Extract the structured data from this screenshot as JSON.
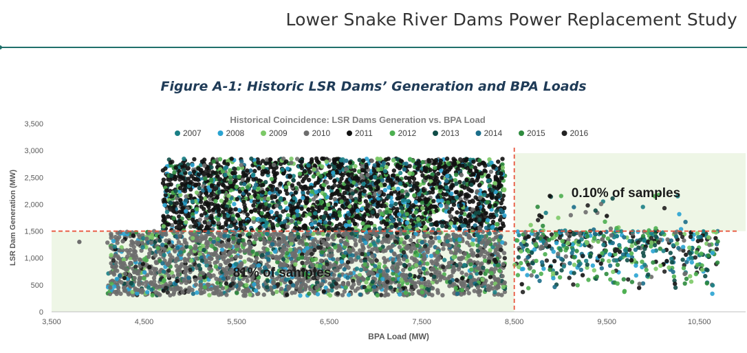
{
  "header": {
    "document_title": "Lower Snake River Dams Power Replacement Study",
    "figure_caption": "Figure A-1: Historic LSR Dams’ Generation and BPA Loads"
  },
  "chart_data": {
    "type": "scatter",
    "title": "Historical Coincidence: LSR Dams Generation vs. BPA Load",
    "xlabel": "BPA Load (MW)",
    "ylabel": "LSR Dam Generation (MW)",
    "xlim": [
      3500,
      11000
    ],
    "ylim": [
      0,
      3500
    ],
    "x_ticks": [
      3500,
      4500,
      5500,
      6500,
      7500,
      8500,
      9500,
      10500
    ],
    "x_tick_labels": [
      "3,500",
      "4,500",
      "5,500",
      "6,500",
      "7,500",
      "8,500",
      "9,500",
      "10,500"
    ],
    "y_ticks": [
      0,
      500,
      1000,
      1500,
      2000,
      2500,
      3000,
      3500
    ],
    "y_tick_labels": [
      "0",
      "500",
      "1,000",
      "1,500",
      "2,000",
      "2,500",
      "3,000",
      "3,500"
    ],
    "legend": [
      "2007",
      "2008",
      "2009",
      "2010",
      "2011",
      "2012",
      "2013",
      "2014",
      "2015",
      "2016"
    ],
    "legend_position": "top",
    "series_colors": [
      "#1a7f85",
      "#29a3d1",
      "#7cc967",
      "#6d6d6d",
      "#111111",
      "#4caf50",
      "#0f4c47",
      "#1b6e8a",
      "#2e8b3e",
      "#222222"
    ],
    "threshold_lines": {
      "x": 8500,
      "y": 1500,
      "color": "#e8543c"
    },
    "regions": [
      {
        "x_range": [
          3500,
          8500
        ],
        "y_range": [
          0,
          1500
        ],
        "label": "81% of samples",
        "fill": "#eef6e6"
      },
      {
        "x_range": [
          8500,
          11000
        ],
        "y_range": [
          1500,
          2950
        ],
        "label": "0.10% of samples",
        "fill": "#eef6e6"
      }
    ],
    "clusters": [
      {
        "name": "main-low",
        "x_range": [
          4100,
          8400
        ],
        "y_range": [
          300,
          1500
        ],
        "density": "very high",
        "dominant_series": "2010"
      },
      {
        "name": "main-high",
        "x_range": [
          4700,
          8400
        ],
        "y_range": [
          1500,
          2850
        ],
        "density": "very high",
        "dominant_series": "2011"
      },
      {
        "name": "high-load-low-gen",
        "x_range": [
          8500,
          10700
        ],
        "y_range": [
          300,
          1500
        ],
        "density": "medium"
      },
      {
        "name": "high-load-high-gen",
        "x_range": [
          8500,
          10400
        ],
        "y_range": [
          1500,
          2300
        ],
        "density": "sparse"
      }
    ],
    "outliers": [
      {
        "x": 3800,
        "y": 1300,
        "series": "2010"
      }
    ]
  }
}
